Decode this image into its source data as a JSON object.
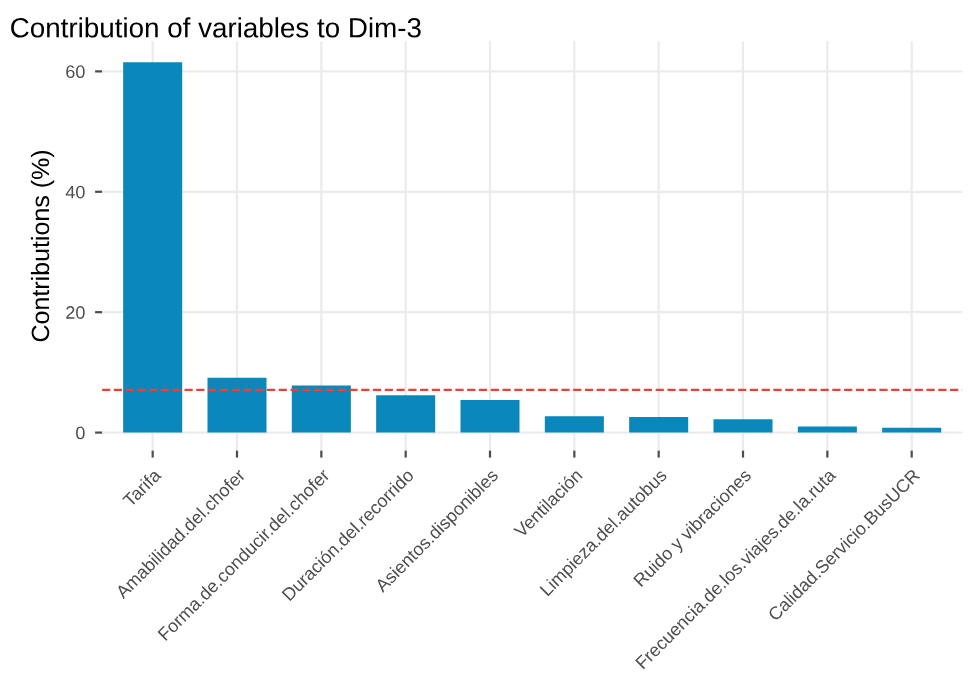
{
  "chart_data": {
    "type": "bar",
    "title": "Contribution of variables to Dim-3",
    "ylabel": "Contributions (%)",
    "categories": [
      "Tarifa",
      "Amabilidad.del.chofer",
      "Forma.de.conducir.del.chofer",
      "Duración.del.recorrido",
      "Asientos.disponibles",
      "Ventilación",
      "Limpieza.del.autobus",
      "Ruido y vibraciones",
      "Frecuencia.de.los.viajes.de.la.ruta",
      "Calidad.Servicio.BusUCR"
    ],
    "values": [
      61.5,
      9.1,
      7.8,
      6.2,
      5.4,
      2.7,
      2.6,
      2.2,
      1.0,
      0.8
    ],
    "color": "#0a87bb",
    "ylim": [
      -3,
      65
    ],
    "yticks": [
      0,
      20,
      40,
      60
    ],
    "grid": true,
    "ref_lines": [
      {
        "axis": "y",
        "value": 7.1,
        "color": "#e8413a",
        "line_style": "dashed"
      }
    ]
  }
}
